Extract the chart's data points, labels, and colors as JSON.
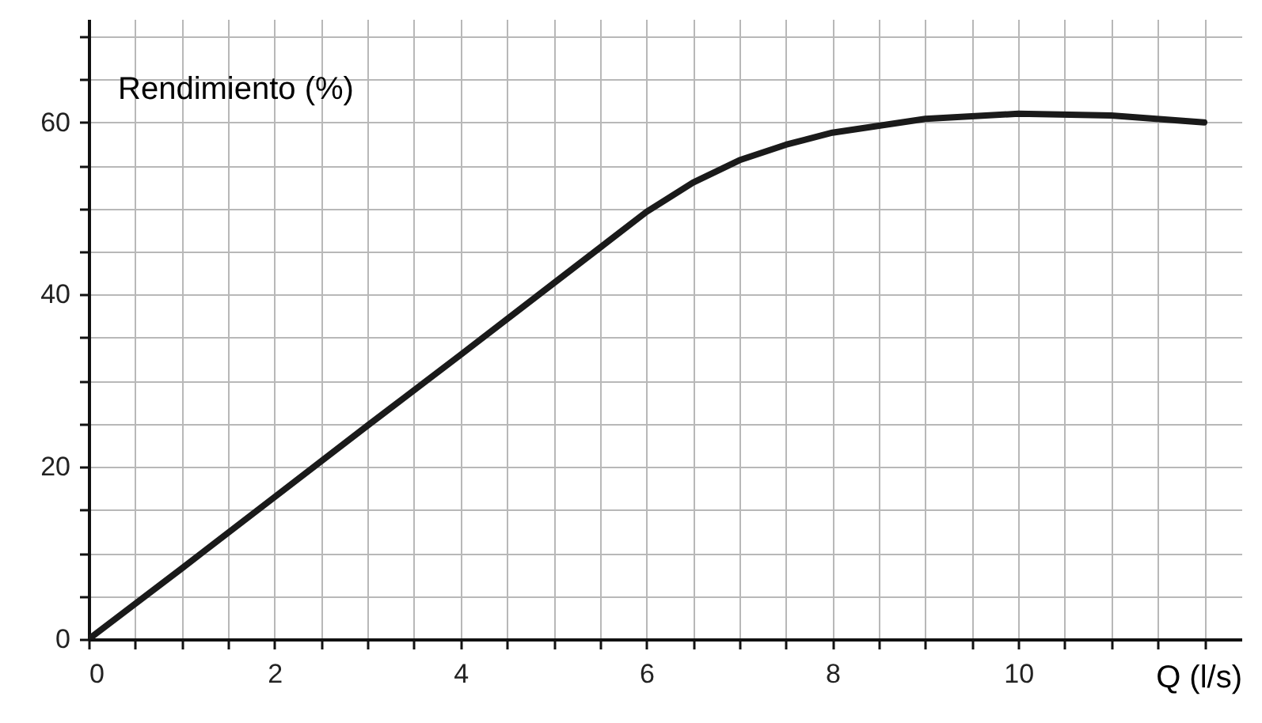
{
  "chart_data": {
    "type": "line",
    "xlabel": "Q (l/s)",
    "ylabel": "Rendimiento (%)",
    "x": [
      0,
      1,
      2,
      3,
      4,
      5,
      6,
      6.5,
      7,
      7.5,
      8,
      9,
      10,
      11,
      12
    ],
    "series": [
      {
        "color": "#1a1a1a",
        "values": [
          0,
          8.2,
          16.5,
          24.8,
          33,
          41.3,
          49.6,
          53,
          55.6,
          57.4,
          58.8,
          60.4,
          61,
          60.8,
          60
        ]
      }
    ],
    "xlim": [
      0,
      12.4
    ],
    "ylim": [
      0,
      72
    ],
    "xticks": [
      0,
      {
        "value": 0.5,
        "label": null
      },
      {
        "value": 1,
        "label": null
      },
      {
        "value": 1.5,
        "label": null
      },
      2,
      {
        "value": 2.5,
        "label": null
      },
      {
        "value": 3,
        "label": null
      },
      {
        "value": 3.5,
        "label": null
      },
      4,
      {
        "value": 4.5,
        "label": null
      },
      {
        "value": 5,
        "label": null
      },
      {
        "value": 5.5,
        "label": null
      },
      6,
      {
        "value": 6.5,
        "label": null
      },
      {
        "value": 7,
        "label": null
      },
      {
        "value": 7.5,
        "label": null
      },
      8,
      {
        "value": 8.5,
        "label": null
      },
      {
        "value": 9,
        "label": null
      },
      {
        "value": 9.5,
        "label": null
      },
      10,
      {
        "value": 10.5,
        "label": null
      },
      {
        "value": 11,
        "label": null
      },
      {
        "value": 11.5,
        "label": null
      },
      {
        "value": 12,
        "label": null
      }
    ],
    "yticks": [
      0,
      {
        "value": 5,
        "label": null
      },
      {
        "value": 10,
        "label": null
      },
      {
        "value": 15,
        "label": null
      },
      20,
      {
        "value": 25,
        "label": null
      },
      {
        "value": 30,
        "label": null
      },
      {
        "value": 35,
        "label": null
      },
      40,
      {
        "value": 45,
        "label": null
      },
      {
        "value": 50,
        "label": null
      },
      {
        "value": 55,
        "label": null
      },
      60,
      {
        "value": 65,
        "label": null
      },
      {
        "value": 70,
        "label": null
      }
    ],
    "grid": true,
    "line_style": "solid",
    "marker": "none"
  }
}
